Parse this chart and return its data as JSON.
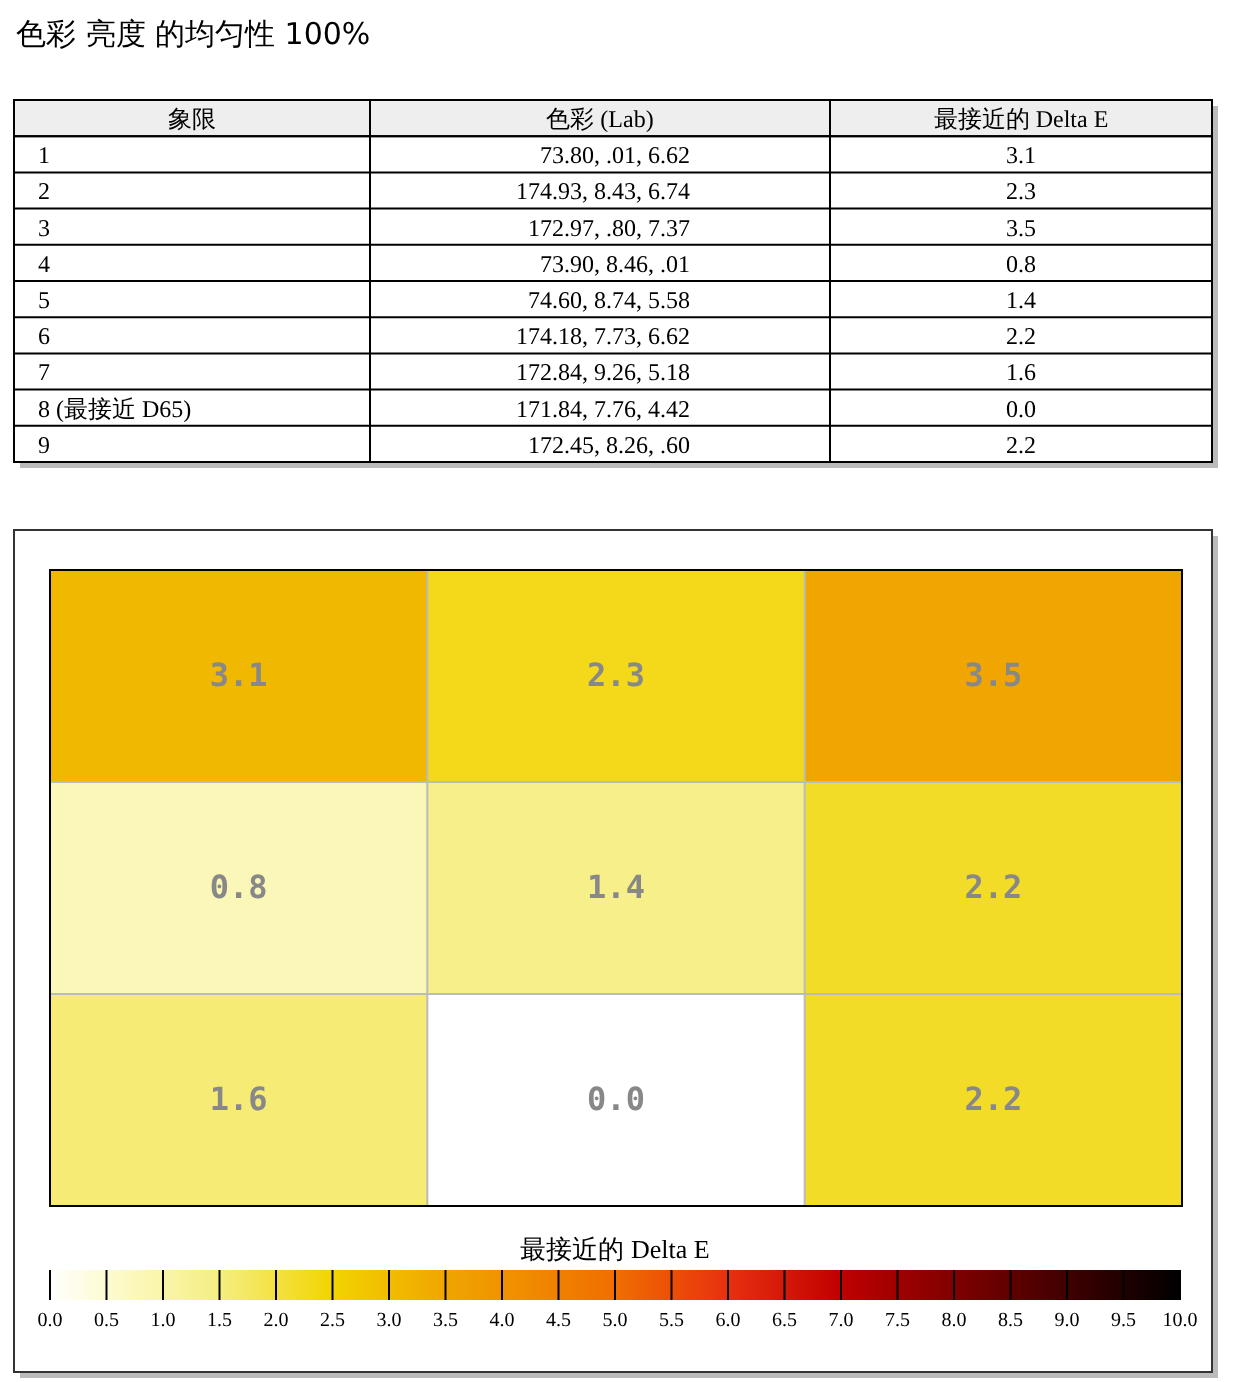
{
  "chart_data": [
    {
      "type": "other",
      "title": "色彩 亮度 的均匀性 100%",
      "annotations": [
        "象限",
        "色彩 (Lab)",
        "最接近的 Delta E",
        "1",
        "73.80, .01, 6.62",
        "3.1",
        "2",
        "174.93, 8.43, 6.74",
        "2.3",
        "3",
        "172.97, .80, 7.37",
        "3.5",
        "4",
        "73.90, 8.46, .01",
        "0.8",
        "5",
        "74.60, 8.74, 5.58",
        "1.4",
        "6",
        "174.18, 7.73, 6.62",
        "2.2",
        "7",
        "172.84, 9.26, 5.18",
        "1.6",
        "8 (最接近 D65)",
        "171.84, 7.76, 4.42",
        "0.0",
        "9",
        "172.45, 8.26, .60",
        "2.2"
      ]
    },
    {
      "type": "heatmap",
      "categories": [
        null,
        null,
        null
      ],
      "y_categories": [
        null,
        null,
        null
      ],
      "cells": [
        [
          3.1,
          2.3,
          3.5
        ],
        [
          0.8,
          1.4,
          2.2
        ],
        [
          1.6,
          0.0,
          2.2
        ]
      ],
      "cell_labels": [
        [
          "3.1",
          "2.3",
          "3.5"
        ],
        [
          "0.8",
          "1.4",
          "2.2"
        ],
        [
          "1.6",
          "0.0",
          "2.2"
        ]
      ],
      "data_labels": true,
      "grid": true,
      "clabel": "最接近的 Delta E",
      "clim": [
        0,
        10
      ],
      "cticks": [
        {
          "value": 0,
          "label": "0.0"
        },
        {
          "value": 0.5,
          "label": "0.5"
        },
        {
          "value": 1,
          "label": "1.0"
        },
        {
          "value": 1.5,
          "label": "1.5"
        },
        {
          "value": 2,
          "label": "2.0"
        },
        {
          "value": 2.5,
          "label": "2.5"
        },
        {
          "value": 3,
          "label": "3.0"
        },
        {
          "value": 3.5,
          "label": "3.5"
        },
        {
          "value": 4,
          "label": "4.0"
        },
        {
          "value": 4.5,
          "label": "4.5"
        },
        {
          "value": 5,
          "label": "5.0"
        },
        {
          "value": 5.5,
          "label": "5.5"
        },
        {
          "value": 6,
          "label": "6.0"
        },
        {
          "value": 6.5,
          "label": "6.5"
        },
        {
          "value": 7,
          "label": "7.0"
        },
        {
          "value": 7.5,
          "label": "7.5"
        },
        {
          "value": 8,
          "label": "8.0"
        },
        {
          "value": 8.5,
          "label": "8.5"
        },
        {
          "value": 9,
          "label": "9.0"
        },
        {
          "value": 9.5,
          "label": "9.5"
        },
        {
          "value": 10,
          "label": "10.0"
        }
      ]
    }
  ]
}
